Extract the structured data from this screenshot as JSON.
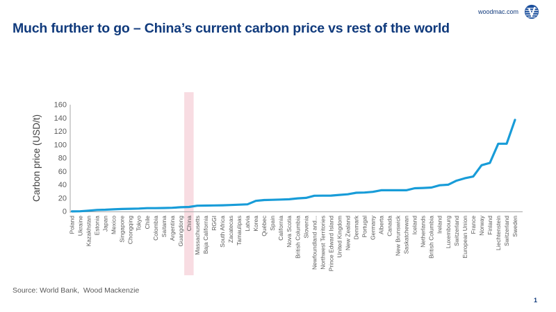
{
  "header": {
    "title": "Much further to go – China’s current carbon price vs rest of the world",
    "site_link": "woodmac.com"
  },
  "footer": {
    "source": "Source: World Bank,  Wood Mackenzie",
    "page_number": "1"
  },
  "colors": {
    "title": "#103a7c",
    "line": "#189cd8",
    "highlight_band": "#f8dce2",
    "axis": "#a6a6a6",
    "tick_text": "#595959",
    "axis_title_text": "#404040",
    "logo_blue": "#1a4e9c"
  },
  "chart_data": {
    "type": "line",
    "title": "",
    "xlabel": "",
    "ylabel": "Carbon price (USD/t)",
    "ylim": [
      0,
      160
    ],
    "ytick_step": 20,
    "grid": false,
    "legend": null,
    "highlighted_category": "China",
    "categories": [
      "Poland",
      "Ukraine",
      "Kazakhstan",
      "Estonia",
      "Japan",
      "Mexico",
      "Singapore",
      "Chongqing",
      "Tokyo",
      "Chile",
      "Colombia",
      "Saitama",
      "Argentina",
      "Guangdong",
      "China",
      "Massachusetts",
      "Baja California",
      "RGGI",
      "South Africa",
      "Zacatecas",
      "Tamaulipas",
      "Latvia",
      "Korea",
      "Québec",
      "Spain",
      "California",
      "Nova Scotia",
      "British Columbia",
      "Slovenia",
      "Newfoundland and...",
      "Northwest Territories",
      "Prince Edward Island",
      "United Kingdom",
      "New Zealand",
      "Denmark",
      "Portugal",
      "Germany",
      "Alberta",
      "Canada",
      "New Brunswick",
      "Saskatchewan",
      "Iceland",
      "Netherlands",
      "British Columbia",
      "Ireland",
      "Luxembourg",
      "Switzerland",
      "European Union",
      "France",
      "Norway",
      "Finland",
      "Liechtenstein",
      "Switzerland",
      "Sweden"
    ],
    "values": [
      0.1,
      0.3,
      1.2,
      2.3,
      2.6,
      3.2,
      3.7,
      4.1,
      4.4,
      5.0,
      5.0,
      5.2,
      5.5,
      6.3,
      6.8,
      8.6,
      8.8,
      9.0,
      9.2,
      9.7,
      10.2,
      10.7,
      15.9,
      17.1,
      17.5,
      17.9,
      18.3,
      19.6,
      20.4,
      23.6,
      23.7,
      23.8,
      24.8,
      25.8,
      28.1,
      28.4,
      29.4,
      31.8,
      31.8,
      31.8,
      31.8,
      34.8,
      35.2,
      35.8,
      39.3,
      40.1,
      46.1,
      49.8,
      52.4,
      69.3,
      72.8,
      101.5,
      101.5,
      137.2
    ]
  }
}
